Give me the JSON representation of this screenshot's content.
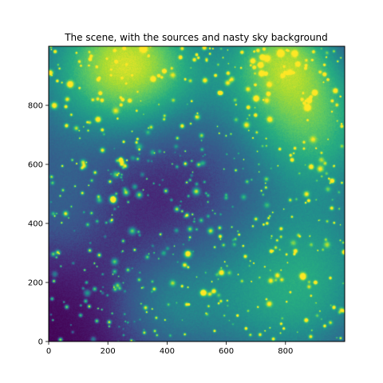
{
  "chart_data": {
    "type": "heatmap",
    "title": "The scene, with the sources and nasty sky background",
    "xlabel": "",
    "ylabel": "",
    "xlim": [
      0,
      1000
    ],
    "ylim": [
      0,
      1000
    ],
    "x_ticks": [
      0,
      200,
      400,
      600,
      800
    ],
    "y_ticks": [
      0,
      200,
      400,
      600,
      800
    ],
    "colormap": "viridis",
    "background_blobs": [
      {
        "x": 270,
        "y": 950,
        "sigma": 150,
        "amplitude": 1.0
      },
      {
        "x": 900,
        "y": 760,
        "sigma": 170,
        "amplitude": 0.95
      },
      {
        "x": 800,
        "y": 980,
        "sigma": 120,
        "amplitude": 0.75
      },
      {
        "x": 60,
        "y": 870,
        "sigma": 230,
        "amplitude": 0.55
      },
      {
        "x": 580,
        "y": 900,
        "sigma": 200,
        "amplitude": 0.45
      },
      {
        "x": 650,
        "y": 150,
        "sigma": 230,
        "amplitude": 0.55
      },
      {
        "x": 380,
        "y": 120,
        "sigma": 130,
        "amplitude": 0.35
      },
      {
        "x": 950,
        "y": 350,
        "sigma": 210,
        "amplitude": 0.45
      },
      {
        "x": 30,
        "y": 430,
        "sigma": 150,
        "amplitude": 0.35
      },
      {
        "x": 900,
        "y": 100,
        "sigma": 180,
        "amplitude": 0.35
      }
    ],
    "sources": {
      "count": 650,
      "note": "point sources scattered across the field"
    },
    "grid": false
  }
}
